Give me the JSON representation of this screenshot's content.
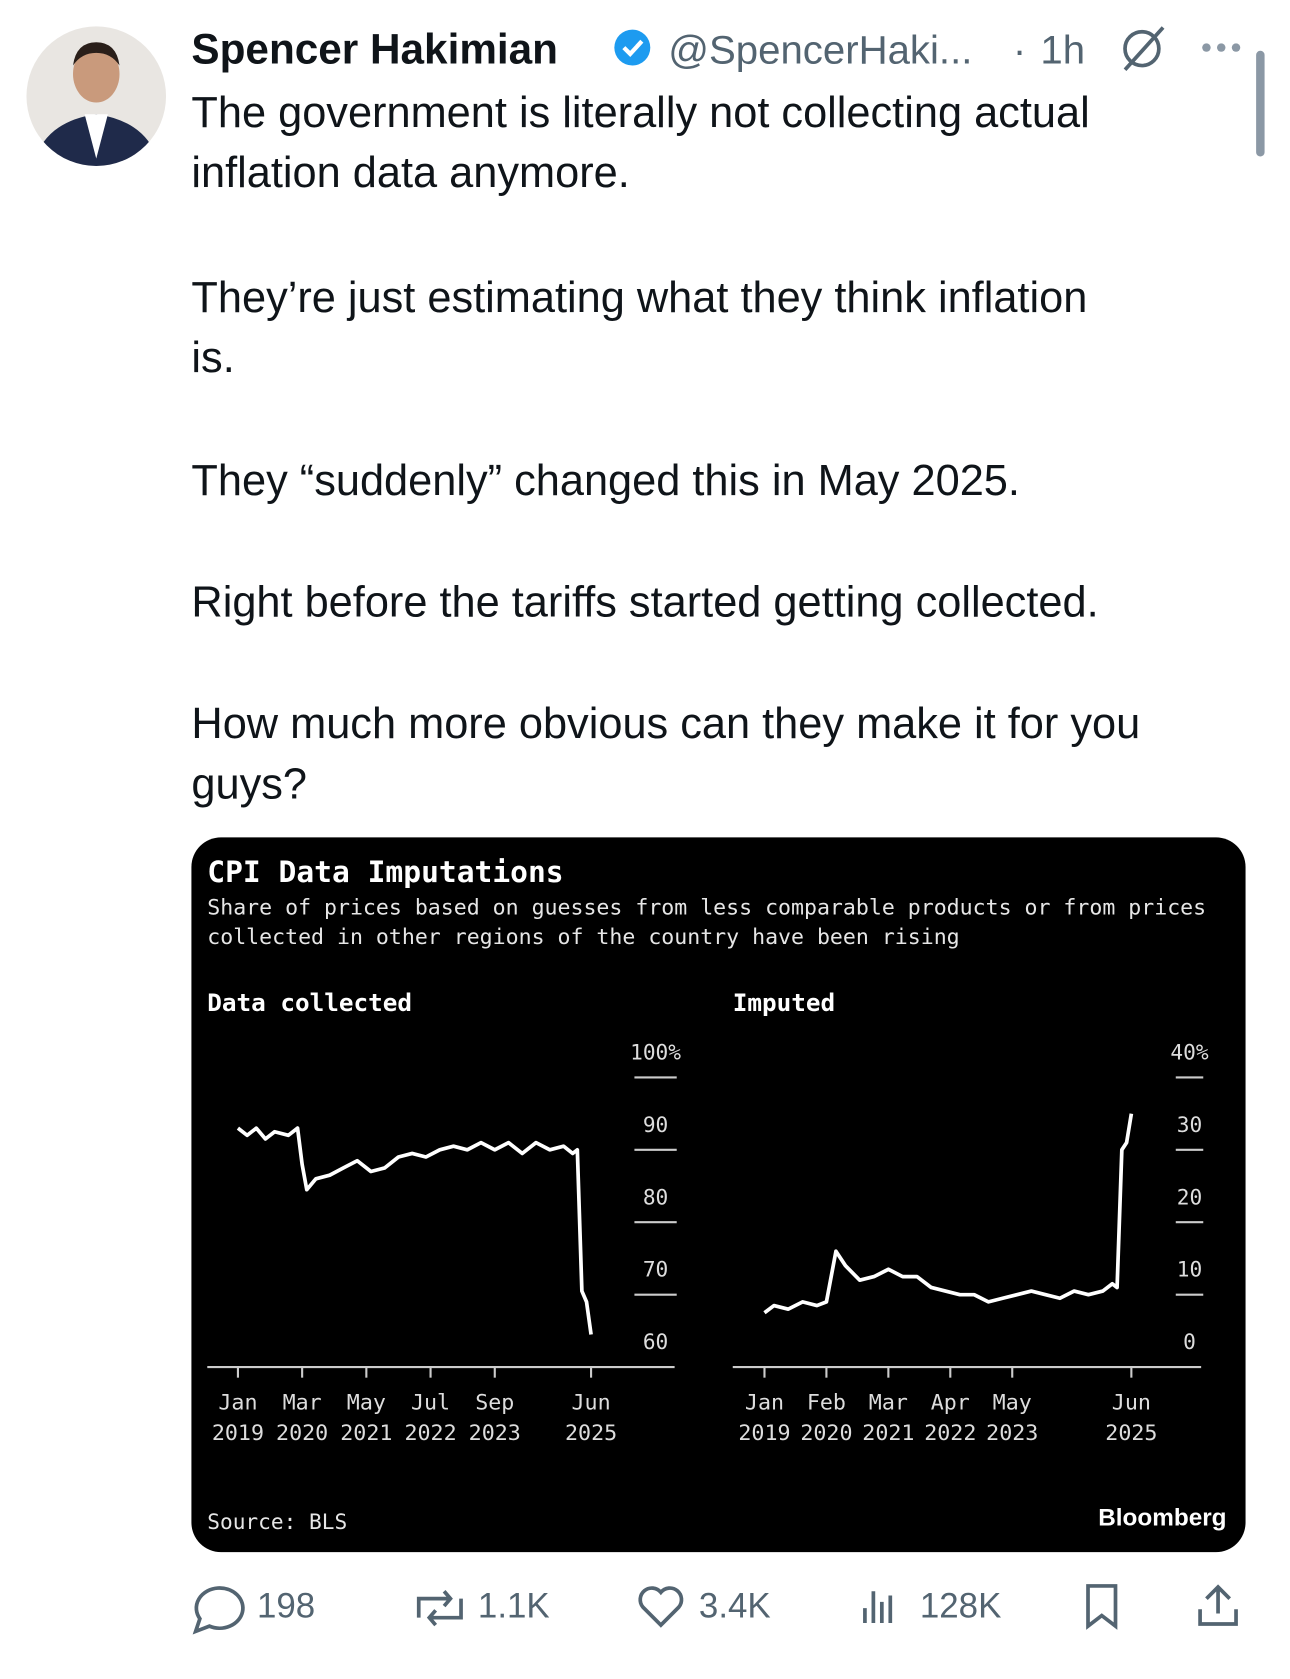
{
  "tweet": {
    "name": "Spencer Hakimian",
    "handle": "@SpencerHaki...",
    "separator": "·",
    "time": "1h",
    "text": [
      [
        "The government is literally not collecting actual",
        "inflation data anymore."
      ],
      [
        "They’re just estimating what they think inflation",
        "is."
      ],
      [
        "They “suddenly” changed this in May 2025."
      ],
      [
        "Right before the tariffs started getting collected."
      ],
      [
        "How much more obvious can they make it for you",
        "guys?"
      ]
    ]
  },
  "figure": {
    "title": "CPI Data Imputations",
    "subtitle": [
      "Share of prices based on guesses from less comparable products or from prices",
      "collected in other regions of the country have been rising"
    ],
    "source": "Source: BLS",
    "brand": "Bloomberg"
  },
  "chart_data": [
    {
      "type": "line",
      "title": "Data collected",
      "color": "#ffffff",
      "x": [
        "2019-01",
        "2019-03",
        "2019-05",
        "2019-07",
        "2019-09",
        "2019-12",
        "2020-02",
        "2020-03",
        "2020-04",
        "2020-06",
        "2020-09",
        "2020-12",
        "2021-03",
        "2021-06",
        "2021-09",
        "2021-12",
        "2022-03",
        "2022-06",
        "2022-09",
        "2022-12",
        "2023-03",
        "2023-06",
        "2023-09",
        "2023-12",
        "2024-03",
        "2024-06",
        "2024-09",
        "2024-12",
        "2025-02",
        "2025-03",
        "2025-04",
        "2025-05",
        "2025-06"
      ],
      "values": [
        93,
        92,
        93,
        91.5,
        92.5,
        92,
        93,
        88,
        84.5,
        86,
        86.5,
        87.5,
        88.5,
        87,
        87.5,
        89,
        89.5,
        89,
        90,
        90.5,
        90,
        91,
        90,
        91,
        89.5,
        91,
        90,
        90.5,
        89.5,
        90,
        70.5,
        69,
        64.5
      ],
      "xlim": [
        "2019-01",
        "2025-06"
      ],
      "xticks": [
        {
          "value": "2019-01",
          "label": [
            "Jan",
            "2019"
          ]
        },
        {
          "value": "2020-03",
          "label": [
            "Mar",
            "2020"
          ]
        },
        {
          "value": "2021-05",
          "label": [
            "May",
            "2021"
          ]
        },
        {
          "value": "2022-07",
          "label": [
            "Jul",
            "2022"
          ]
        },
        {
          "value": "2023-09",
          "label": [
            "Sep",
            "2023"
          ]
        },
        {
          "value": "2025-06",
          "label": [
            "Jun",
            "2025"
          ]
        }
      ],
      "ylim": [
        60,
        100
      ],
      "yticks": [
        60,
        70,
        80,
        90,
        {
          "value": 100,
          "label": "100%"
        }
      ]
    },
    {
      "type": "line",
      "title": "Imputed",
      "color": "#ffffff",
      "x": [
        "2019-01",
        "2019-03",
        "2019-06",
        "2019-09",
        "2019-12",
        "2020-02",
        "2020-04",
        "2020-06",
        "2020-09",
        "2020-12",
        "2021-03",
        "2021-06",
        "2021-09",
        "2021-12",
        "2022-03",
        "2022-06",
        "2022-09",
        "2022-12",
        "2023-03",
        "2023-06",
        "2023-09",
        "2023-12",
        "2024-03",
        "2024-06",
        "2024-09",
        "2024-12",
        "2025-02",
        "2025-03",
        "2025-04",
        "2025-05",
        "2025-06"
      ],
      "values": [
        7.5,
        8.5,
        8,
        9,
        8.5,
        9,
        16,
        14,
        12,
        12.5,
        13.5,
        12.5,
        12.5,
        11,
        10.5,
        10,
        10,
        9,
        9.5,
        10,
        10.5,
        10,
        9.5,
        10.5,
        10,
        10.5,
        11.5,
        11,
        30,
        31,
        35
      ],
      "xlim": [
        "2019-01",
        "2025-06"
      ],
      "xticks": [
        {
          "value": "2019-01",
          "label": [
            "Jan",
            "2019"
          ]
        },
        {
          "value": "2020-02",
          "label": [
            "Feb",
            "2020"
          ]
        },
        {
          "value": "2021-03",
          "label": [
            "Mar",
            "2021"
          ]
        },
        {
          "value": "2022-04",
          "label": [
            "Apr",
            "2022"
          ]
        },
        {
          "value": "2023-05",
          "label": [
            "May",
            "2023"
          ]
        },
        {
          "value": "2025-06",
          "label": [
            "Jun",
            "2025"
          ]
        }
      ],
      "ylim": [
        0,
        40
      ],
      "yticks": [
        0,
        10,
        20,
        30,
        {
          "value": 40,
          "label": "40%"
        }
      ]
    }
  ],
  "actions": {
    "replies": "198",
    "reposts": "1.1K",
    "likes": "3.4K",
    "views": "128K"
  }
}
